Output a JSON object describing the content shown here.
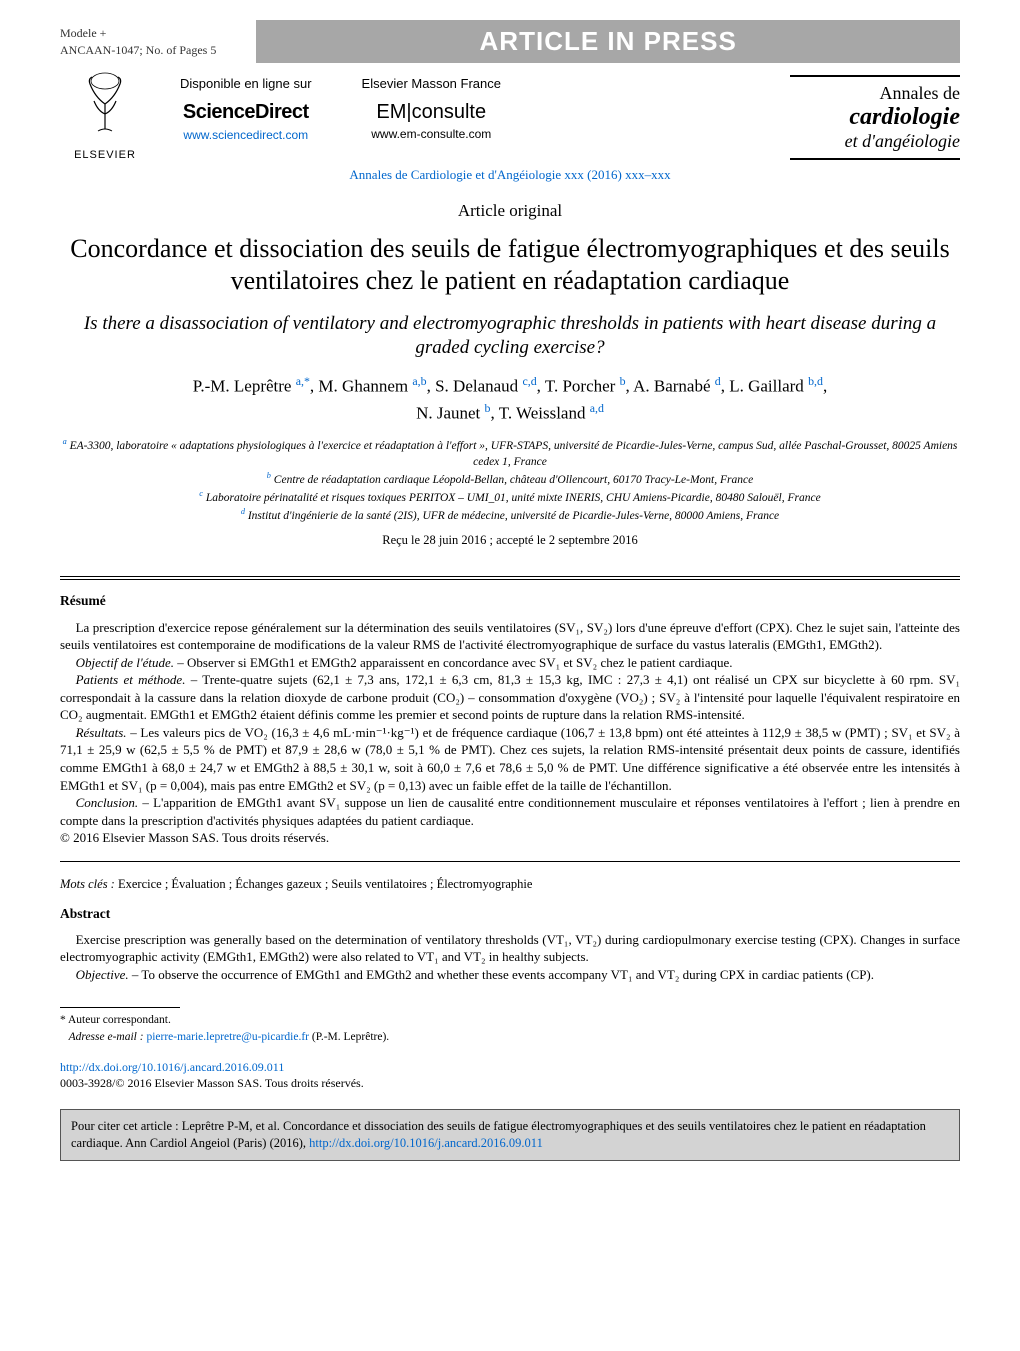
{
  "header": {
    "modele_line1": "Modele +",
    "modele_line2": "ANCAAN-1047;   No. of Pages 5",
    "press_banner": "ARTICLE IN PRESS"
  },
  "brands": {
    "elsevier": "ELSEVIER",
    "sd_available": "Disponible en ligne sur",
    "sd_logo": "ScienceDirect",
    "sd_url": "www.sciencedirect.com",
    "emc_publisher": "Elsevier Masson France",
    "emc_logo_em": "EM",
    "emc_logo_consulte": "consulte",
    "emc_url": "www.em-consulte.com",
    "journal_line1": "Annales de",
    "journal_line2": "cardiologie",
    "journal_line3": "et d'angéiologie"
  },
  "citation_line": "Annales de Cardiologie et d'Angéiologie xxx (2016) xxx–xxx",
  "article_type": "Article original",
  "title_fr": "Concordance et dissociation des seuils de fatigue électromyographiques et des seuils ventilatoires chez le patient en réadaptation cardiaque",
  "title_en": "Is there a disassociation of ventilatory and electromyographic thresholds in patients with heart disease during a graded cycling exercise?",
  "authors_html": "P.-M. Leprêtre <sup class='aff'>a,*</sup>, M. Ghannem <sup class='aff'>a,b</sup>, S. Delanaud <sup class='aff'>c,d</sup>, T. Porcher <sup class='aff'>b</sup>, A. Barnabé <sup class='aff'>d</sup>, L. Gaillard <sup class='aff'>b,d</sup>,<br>N. Jaunet <sup class='aff'>b</sup>, T. Weissland <sup class='aff'>a,d</sup>",
  "affiliations": {
    "a": "EA-3300, laboratoire « adaptations physiologiques à l'exercice et réadaptation à l'effort », UFR-STAPS, université de Picardie-Jules-Verne, campus Sud, allée Paschal-Grousset, 80025 Amiens cedex 1, France",
    "b": "Centre de réadaptation cardiaque Léopold-Bellan, château d'Ollencourt, 60170 Tracy-Le-Mont, France",
    "c": "Laboratoire périnatalité et risques toxiques PERITOX – UMI_01, unité mixte INERIS, CHU Amiens-Picardie, 80480 Salouël, France",
    "d": "Institut d'ingénierie de la santé (2IS), UFR de médecine, université de Picardie-Jules-Verne, 80000 Amiens, France"
  },
  "dates": "Reçu le 28 juin 2016 ; accepté le 2 septembre 2016",
  "resume": {
    "heading": "Résumé",
    "p1": "La prescription d'exercice repose généralement sur la détermination des seuils ventilatoires (SV₁, SV₂) lors d'une épreuve d'effort (CPX). Chez le sujet sain, l'atteinte des seuils ventilatoires est contemporaine de modifications de la valeur RMS de l'activité électromyographique de surface du vastus lateralis (EMGth1, EMGth2).",
    "p2_label": "Objectif de l'étude.",
    "p2": " – Observer si EMGth1 et EMGth2 apparaissent en concordance avec SV₁ et SV₂ chez le patient cardiaque.",
    "p3_label": "Patients et méthode.",
    "p3": " – Trente-quatre sujets (62,1 ± 7,3 ans, 172,1 ± 6,3 cm, 81,3 ± 15,3 kg, IMC : 27,3 ± 4,1) ont réalisé un CPX sur bicyclette à 60 rpm. SV₁ correspondait à la cassure dans la relation dioxyde de carbone produit (CO₂) – consommation d'oxygène (VO₂) ; SV₂ à l'intensité pour laquelle l'équivalent respiratoire en CO₂ augmentait. EMGth1 et EMGth2 étaient définis comme les premier et second points de rupture dans la relation RMS-intensité.",
    "p4_label": "Résultats.",
    "p4": " – Les valeurs pics de VO₂ (16,3 ± 4,6 mL·min⁻¹·kg⁻¹) et de fréquence cardiaque (106,7 ± 13,8 bpm) ont été atteintes à 112,9 ± 38,5 w (PMT) ; SV₁ et SV₂ à 71,1 ± 25,9 w (62,5 ± 5,5 % de PMT) et 87,9 ± 28,6 w (78,0 ± 5,1 % de PMT). Chez ces sujets, la relation RMS-intensité présentait deux points de cassure, identifiés comme EMGth1 à 68,0 ± 24,7 w et EMGth2 à 88,5 ± 30,1 w, soit à 60,0 ± 7,6 et 78,6 ± 5,0 % de PMT. Une différence significative a été observée entre les intensités à EMGth1 et SV₁ (p = 0,004), mais pas entre EMGth2 et SV₂ (p = 0,13) avec un faible effet de la taille de l'échantillon.",
    "p5_label": "Conclusion.",
    "p5": " – L'apparition de EMGth1 avant SV₁ suppose un lien de causalité entre conditionnement musculaire et réponses ventilatoires à l'effort ; lien à prendre en compte dans la prescription d'activités physiques adaptées du patient cardiaque.",
    "copyright": "© 2016 Elsevier Masson SAS. Tous droits réservés."
  },
  "mots_cles": {
    "label": "Mots clés :",
    "value": " Exercice ; Évaluation ; Échanges gazeux ; Seuils ventilatoires ; Électromyographie"
  },
  "abstract": {
    "heading": "Abstract",
    "p1": "Exercise prescription was generally based on the determination of ventilatory thresholds (VT₁, VT₂) during cardiopulmonary exercise testing (CPX). Changes in surface electromyographic activity (EMGth1, EMGth2) were also related to VT₁ and VT₂ in healthy subjects.",
    "p2_label": "Objective.",
    "p2": " – To observe the occurrence of EMGth1 and EMGth2 and whether these events accompany VT₁ and VT₂ during CPX in cardiac patients (CP)."
  },
  "footnotes": {
    "corresponding": "* Auteur correspondant.",
    "email_label": "Adresse e-mail :",
    "email": "pierre-marie.lepretre@u-picardie.fr",
    "email_suffix": " (P.-M. Leprêtre)."
  },
  "doi": {
    "url": "http://dx.doi.org/10.1016/j.ancard.2016.09.011",
    "issn_line": "0003-3928/© 2016 Elsevier Masson SAS. Tous droits réservés."
  },
  "cite_box": {
    "text_prefix": "Pour citer cet article : Leprêtre P-M, et al. Concordance et dissociation des seuils de fatigue électromyographiques et des seuils ventilatoires chez le patient en réadaptation cardiaque. Ann Cardiol Angeiol (Paris) (2016), ",
    "url": "http://dx.doi.org/10.1016/j.ancard.2016.09.011"
  },
  "colors": {
    "link": "#0066cc",
    "banner_bg": "#a7a7a7",
    "cite_bg": "#d3d3d3"
  }
}
